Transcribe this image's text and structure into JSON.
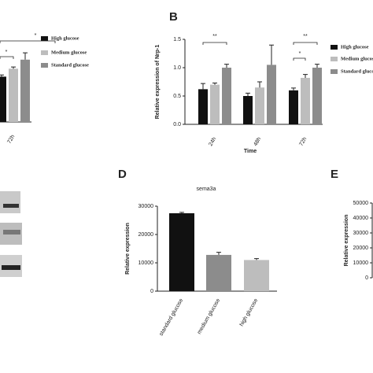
{
  "chart_data": [
    {
      "type": "bar",
      "categories": [
        "72h"
      ],
      "ylim": [
        0,
        1.5
      ],
      "series": [
        {
          "name": "High glucose",
          "color": "#111111",
          "values": [
            0.8
          ],
          "errors": [
            0.03
          ]
        },
        {
          "name": "Medium glucose",
          "color": "#bdbdbd",
          "values": [
            0.94
          ],
          "errors": [
            0.03
          ]
        },
        {
          "name": "Standard glucose",
          "color": "#8c8c8c",
          "values": [
            1.1
          ],
          "errors": [
            0.12
          ]
        }
      ],
      "annotations": [
        "*",
        "*"
      ]
    },
    {
      "type": "bar",
      "panel_label": "B",
      "ylabel": "Relative expression of Nrp-1",
      "xlabel": "Time",
      "categories": [
        "24h",
        "48h",
        "72h"
      ],
      "ylim": [
        0,
        1.5
      ],
      "yticks": [
        0.0,
        0.5,
        1.0,
        1.5
      ],
      "ytick_labels": [
        "0.0",
        "0.5",
        "1.0",
        "1.5"
      ],
      "series": [
        {
          "name": "High glucose",
          "color": "#111111",
          "values": [
            0.62,
            0.5,
            0.6
          ],
          "errors": [
            0.1,
            0.05,
            0.04
          ]
        },
        {
          "name": "Medium glucose",
          "color": "#bdbdbd",
          "values": [
            0.7,
            0.65,
            0.82
          ],
          "errors": [
            0.03,
            0.1,
            0.06
          ]
        },
        {
          "name": "Standard glucose",
          "color": "#8c8c8c",
          "values": [
            1.0,
            1.05,
            1.0
          ],
          "errors": [
            0.06,
            0.35,
            0.06
          ]
        }
      ],
      "annotations": [
        "**",
        "**",
        "*"
      ]
    },
    {
      "type": "bar",
      "panel_label": "D",
      "title": "sema3a",
      "ylabel": "Relative expression",
      "categories": [
        "standard glucose",
        "medium glucose",
        "high glucose"
      ],
      "values": [
        27500,
        12800,
        11000
      ],
      "errors": [
        300,
        900,
        500
      ],
      "colors": [
        "#111111",
        "#8c8c8c",
        "#bdbdbd"
      ],
      "ylim": [
        0,
        30000
      ],
      "yticks": [
        0,
        10000,
        20000,
        30000
      ]
    },
    {
      "type": "bar",
      "panel_label": "E",
      "ylabel": "Relative expression",
      "ylim": [
        0,
        50000
      ],
      "yticks": [
        0,
        10000,
        20000,
        30000,
        40000,
        50000
      ]
    }
  ]
}
